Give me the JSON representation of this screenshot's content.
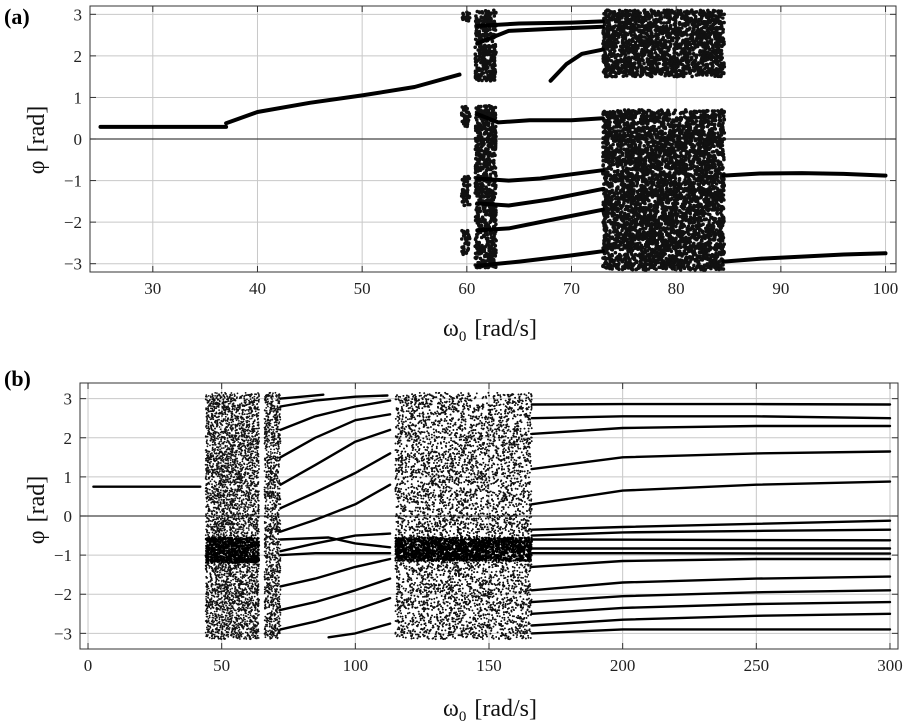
{
  "chart_data": [
    {
      "panel": "(a)",
      "type": "scatter",
      "xlabel_symbol": "ω",
      "xlabel_subscript": "0",
      "xlabel_unit": "[rad/s]",
      "ylabel_symbol": "φ",
      "ylabel_unit": "[rad]",
      "xlim": [
        24,
        101
      ],
      "ylim": [
        -3.2,
        3.2
      ],
      "xticks": [
        30,
        40,
        50,
        60,
        70,
        80,
        90,
        100
      ],
      "yticks": [
        -3,
        -2,
        -1,
        0,
        1,
        2,
        3
      ],
      "grid": true,
      "smooth_segments": [
        [
          [
            25,
            0.29
          ],
          [
            37,
            0.29
          ]
        ],
        [
          [
            37,
            0.38
          ],
          [
            40,
            0.65
          ],
          [
            45,
            0.87
          ],
          [
            50,
            1.05
          ],
          [
            55,
            1.25
          ],
          [
            59.3,
            1.55
          ]
        ],
        [
          [
            61,
            2.72
          ],
          [
            65,
            2.78
          ],
          [
            70,
            2.8
          ],
          [
            73,
            2.83
          ]
        ],
        [
          [
            61,
            2.3
          ],
          [
            64,
            2.6
          ],
          [
            68,
            2.65
          ],
          [
            73,
            2.7
          ]
        ],
        [
          [
            68,
            1.4
          ],
          [
            69.5,
            1.8
          ],
          [
            71,
            2.05
          ],
          [
            73,
            2.15
          ]
        ],
        [
          [
            61,
            0.6
          ],
          [
            63,
            0.4
          ],
          [
            66,
            0.45
          ],
          [
            70,
            0.45
          ],
          [
            73,
            0.5
          ]
        ],
        [
          [
            61,
            -0.95
          ],
          [
            64,
            -1.0
          ],
          [
            67,
            -0.95
          ],
          [
            70,
            -0.85
          ],
          [
            73,
            -0.75
          ]
        ],
        [
          [
            61,
            -1.55
          ],
          [
            64,
            -1.6
          ],
          [
            68,
            -1.45
          ],
          [
            73,
            -1.2
          ]
        ],
        [
          [
            61,
            -2.2
          ],
          [
            64,
            -2.15
          ],
          [
            68,
            -1.95
          ],
          [
            73,
            -1.7
          ]
        ],
        [
          [
            61,
            -3.05
          ],
          [
            65,
            -2.95
          ],
          [
            70,
            -2.8
          ],
          [
            73,
            -2.7
          ]
        ],
        [
          [
            84.5,
            -0.88
          ],
          [
            88,
            -0.83
          ],
          [
            92,
            -0.82
          ],
          [
            96,
            -0.84
          ],
          [
            100,
            -0.88
          ]
        ],
        [
          [
            84.5,
            -2.95
          ],
          [
            88,
            -2.88
          ],
          [
            92,
            -2.83
          ],
          [
            96,
            -2.78
          ],
          [
            100,
            -2.75
          ]
        ]
      ],
      "chaotic_bands": [
        {
          "x": [
            59.5,
            60.3
          ],
          "y": [
            [
              2.8,
              3.05
            ],
            [
              0.3,
              0.8
            ],
            [
              -1.6,
              -0.9
            ],
            [
              -2.8,
              -2.2
            ]
          ]
        },
        {
          "x": [
            60.8,
            62.8
          ],
          "y": [
            [
              1.4,
              3.1
            ],
            [
              -3.1,
              0.8
            ]
          ]
        },
        {
          "x": [
            73,
            84.6
          ],
          "y": [
            [
              1.5,
              3.1
            ],
            [
              -3.15,
              0.7
            ]
          ]
        }
      ]
    },
    {
      "panel": "(b)",
      "type": "scatter",
      "xlabel_symbol": "ω",
      "xlabel_subscript": "0",
      "xlabel_unit": "[rad/s]",
      "ylabel_symbol": "φ",
      "ylabel_unit": "[rad]",
      "xlim": [
        -3,
        303
      ],
      "ylim": [
        -3.4,
        3.4
      ],
      "xticks": [
        0,
        50,
        100,
        150,
        200,
        250,
        300
      ],
      "yticks": [
        -3,
        -2,
        -1,
        0,
        1,
        2,
        3
      ],
      "grid": true,
      "smooth_segments": [
        [
          [
            2,
            0.75
          ],
          [
            42,
            0.75
          ]
        ],
        [
          [
            166,
            2.85
          ],
          [
            200,
            2.86
          ],
          [
            250,
            2.86
          ],
          [
            300,
            2.85
          ]
        ],
        [
          [
            166,
            2.5
          ],
          [
            200,
            2.55
          ],
          [
            250,
            2.55
          ],
          [
            300,
            2.5
          ]
        ],
        [
          [
            166,
            2.1
          ],
          [
            200,
            2.25
          ],
          [
            250,
            2.3
          ],
          [
            300,
            2.3
          ]
        ],
        [
          [
            166,
            1.2
          ],
          [
            200,
            1.5
          ],
          [
            250,
            1.6
          ],
          [
            300,
            1.65
          ]
        ],
        [
          [
            166,
            0.3
          ],
          [
            200,
            0.65
          ],
          [
            250,
            0.8
          ],
          [
            300,
            0.88
          ]
        ],
        [
          [
            166,
            -0.35
          ],
          [
            200,
            -0.28
          ],
          [
            250,
            -0.2
          ],
          [
            300,
            -0.12
          ]
        ],
        [
          [
            166,
            -0.5
          ],
          [
            200,
            -0.42
          ],
          [
            250,
            -0.38
          ],
          [
            300,
            -0.35
          ]
        ],
        [
          [
            166,
            -0.6
          ],
          [
            300,
            -0.62
          ]
        ],
        [
          [
            166,
            -0.83
          ],
          [
            300,
            -0.83
          ]
        ],
        [
          [
            166,
            -0.95
          ],
          [
            200,
            -0.95
          ],
          [
            300,
            -0.96
          ]
        ],
        [
          [
            166,
            -1.3
          ],
          [
            200,
            -1.15
          ],
          [
            250,
            -1.1
          ],
          [
            300,
            -1.1
          ]
        ],
        [
          [
            166,
            -1.9
          ],
          [
            200,
            -1.7
          ],
          [
            250,
            -1.6
          ],
          [
            300,
            -1.55
          ]
        ],
        [
          [
            166,
            -2.2
          ],
          [
            200,
            -2.05
          ],
          [
            250,
            -1.95
          ],
          [
            300,
            -1.9
          ]
        ],
        [
          [
            166,
            -2.5
          ],
          [
            200,
            -2.35
          ],
          [
            250,
            -2.25
          ],
          [
            300,
            -2.2
          ]
        ],
        [
          [
            166,
            -2.8
          ],
          [
            200,
            -2.65
          ],
          [
            250,
            -2.55
          ],
          [
            300,
            -2.5
          ]
        ],
        [
          [
            166,
            -3.0
          ],
          [
            200,
            -2.9
          ],
          [
            300,
            -2.9
          ]
        ],
        [
          [
            72,
            3.0
          ],
          [
            80,
            3.05
          ],
          [
            88,
            3.1
          ]
        ],
        [
          [
            72,
            2.8
          ],
          [
            85,
            2.95
          ],
          [
            100,
            3.05
          ],
          [
            112,
            3.08
          ]
        ],
        [
          [
            72,
            2.2
          ],
          [
            85,
            2.55
          ],
          [
            100,
            2.8
          ],
          [
            113,
            2.95
          ]
        ],
        [
          [
            72,
            1.5
          ],
          [
            85,
            2.0
          ],
          [
            100,
            2.45
          ],
          [
            113,
            2.6
          ]
        ],
        [
          [
            72,
            0.8
          ],
          [
            85,
            1.3
          ],
          [
            100,
            1.9
          ],
          [
            113,
            2.2
          ]
        ],
        [
          [
            72,
            0.2
          ],
          [
            85,
            0.6
          ],
          [
            100,
            1.1
          ],
          [
            113,
            1.6
          ]
        ],
        [
          [
            72,
            -0.4
          ],
          [
            85,
            -0.1
          ],
          [
            100,
            0.3
          ],
          [
            113,
            0.8
          ]
        ],
        [
          [
            72,
            -0.6
          ],
          [
            90,
            -0.55
          ],
          [
            100,
            -0.7
          ],
          [
            113,
            -0.8
          ]
        ],
        [
          [
            72,
            -0.9
          ],
          [
            85,
            -0.7
          ],
          [
            100,
            -0.5
          ],
          [
            113,
            -0.45
          ]
        ],
        [
          [
            72,
            -1.0
          ],
          [
            85,
            -0.95
          ],
          [
            100,
            -0.95
          ],
          [
            113,
            -0.95
          ]
        ],
        [
          [
            72,
            -1.8
          ],
          [
            85,
            -1.6
          ],
          [
            100,
            -1.3
          ],
          [
            113,
            -1.1
          ]
        ],
        [
          [
            72,
            -2.4
          ],
          [
            85,
            -2.2
          ],
          [
            100,
            -1.9
          ],
          [
            113,
            -1.6
          ]
        ],
        [
          [
            72,
            -2.9
          ],
          [
            85,
            -2.7
          ],
          [
            100,
            -2.4
          ],
          [
            113,
            -2.1
          ]
        ],
        [
          [
            90,
            -3.1
          ],
          [
            100,
            -3.0
          ],
          [
            113,
            -2.75
          ]
        ]
      ],
      "chaotic_bands": [
        {
          "x": [
            44,
            64
          ],
          "y": [
            [
              -3.15,
              3.15
            ]
          ]
        },
        {
          "x": [
            66,
            72
          ],
          "y": [
            [
              -3.15,
              3.15
            ]
          ]
        },
        {
          "x": [
            115,
            166
          ],
          "y": [
            [
              -3.15,
              3.15
            ]
          ]
        }
      ],
      "dense_bands": [
        {
          "x": [
            44,
            64
          ],
          "y": [
            -1.2,
            -0.55
          ]
        },
        {
          "x": [
            115,
            166
          ],
          "y": [
            -1.15,
            -0.55
          ]
        }
      ]
    }
  ]
}
